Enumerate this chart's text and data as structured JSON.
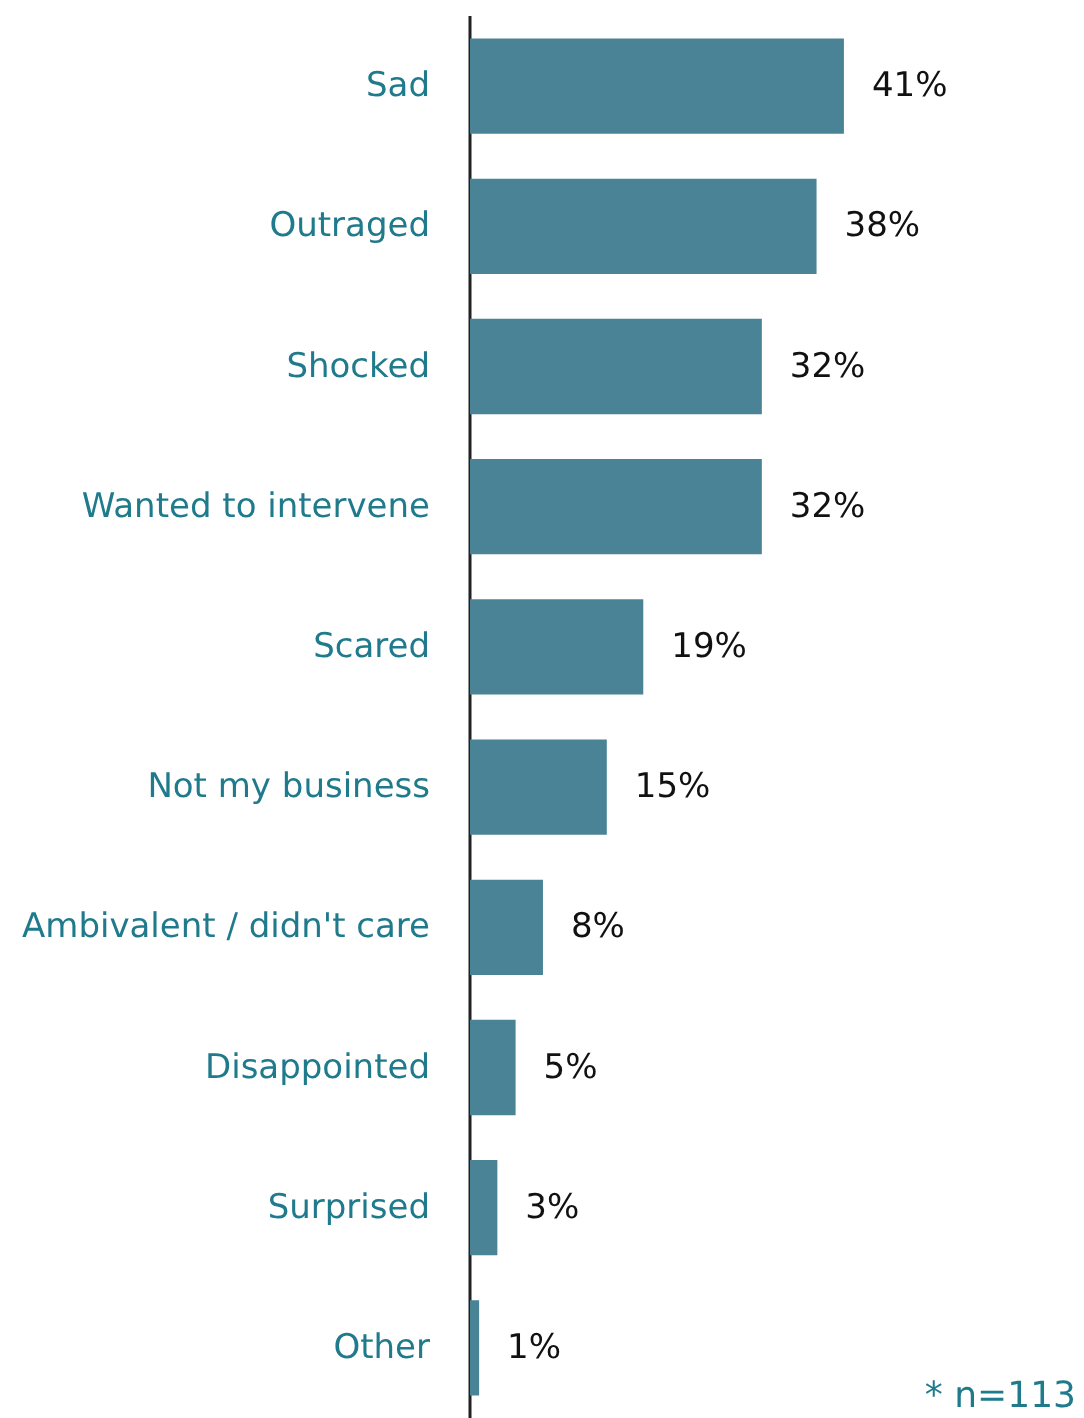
{
  "chart_data": {
    "type": "bar",
    "orientation": "horizontal",
    "categories": [
      "Sad",
      "Outraged",
      "Shocked",
      "Wanted to intervene",
      "Scared",
      "Not my business",
      "Ambivalent / didn't care",
      "Disappointed",
      "Surprised",
      "Other"
    ],
    "values": [
      41,
      38,
      32,
      32,
      19,
      15,
      8,
      5,
      3,
      1
    ],
    "value_labels": [
      "41%",
      "38%",
      "32%",
      "32%",
      "19%",
      "15%",
      "8%",
      "5%",
      "3%",
      "1%"
    ],
    "color": "#4a8396",
    "annotations": [
      "* n=113"
    ]
  }
}
